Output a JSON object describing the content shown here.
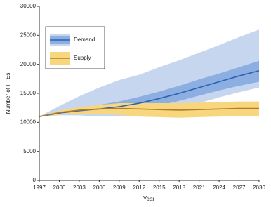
{
  "chart_data": {
    "type": "line",
    "x_label": "Year",
    "y_label": "Number of FTEs",
    "x": [
      1997,
      2000,
      2003,
      2006,
      2009,
      2012,
      2015,
      2018,
      2021,
      2024,
      2027,
      2030
    ],
    "xlim": [
      1997,
      2030
    ],
    "xticks": [
      1997,
      2000,
      2003,
      2006,
      2009,
      2012,
      2015,
      2018,
      2021,
      2024,
      2027,
      2030
    ],
    "ylim": [
      0,
      30000
    ],
    "yticks": [
      0,
      5000,
      10000,
      15000,
      20000,
      25000,
      30000
    ],
    "grid": false,
    "legend": "upper left",
    "series": [
      {
        "name": "Demand",
        "color": "#2a62b5",
        "values": [
          11000,
          11600,
          12000,
          12300,
          12700,
          13300,
          14100,
          15000,
          16000,
          17000,
          18000,
          18900
        ],
        "bands": [
          {
            "color": "#c6d6ef",
            "lower": [
              11000,
              11200,
              11200,
              11000,
              11000,
              11300,
              11800,
              12500,
              13300,
              14300,
              15200,
              16000
            ],
            "upper": [
              11000,
              12800,
              14500,
              16000,
              17300,
              18200,
              19500,
              20700,
              22000,
              23300,
              24700,
              26000
            ]
          },
          {
            "color": "#8caee0",
            "lower": [
              11000,
              11400,
              11600,
              11700,
              11900,
              12300,
              12900,
              13700,
              14600,
              15500,
              16300,
              17000
            ],
            "upper": [
              11000,
              11900,
              12500,
              13000,
              13600,
              14400,
              15300,
              16300,
              17400,
              18400,
              19500,
              20600
            ]
          }
        ]
      },
      {
        "name": "Supply",
        "color": "#b07e2a",
        "values": [
          11000,
          11700,
          12100,
          12300,
          12400,
          12300,
          12200,
          12100,
          12200,
          12300,
          12400,
          12400
        ],
        "bands": [
          {
            "color": "#f8d67e",
            "lower": [
              11000,
              11300,
              11500,
              11400,
              11300,
              11000,
              10900,
              10800,
              10900,
              11000,
              11100,
              11100
            ],
            "upper": [
              11000,
              12000,
              12600,
              13000,
              13300,
              13300,
              13300,
              13300,
              13400,
              13500,
              13600,
              13600
            ]
          }
        ]
      }
    ]
  }
}
